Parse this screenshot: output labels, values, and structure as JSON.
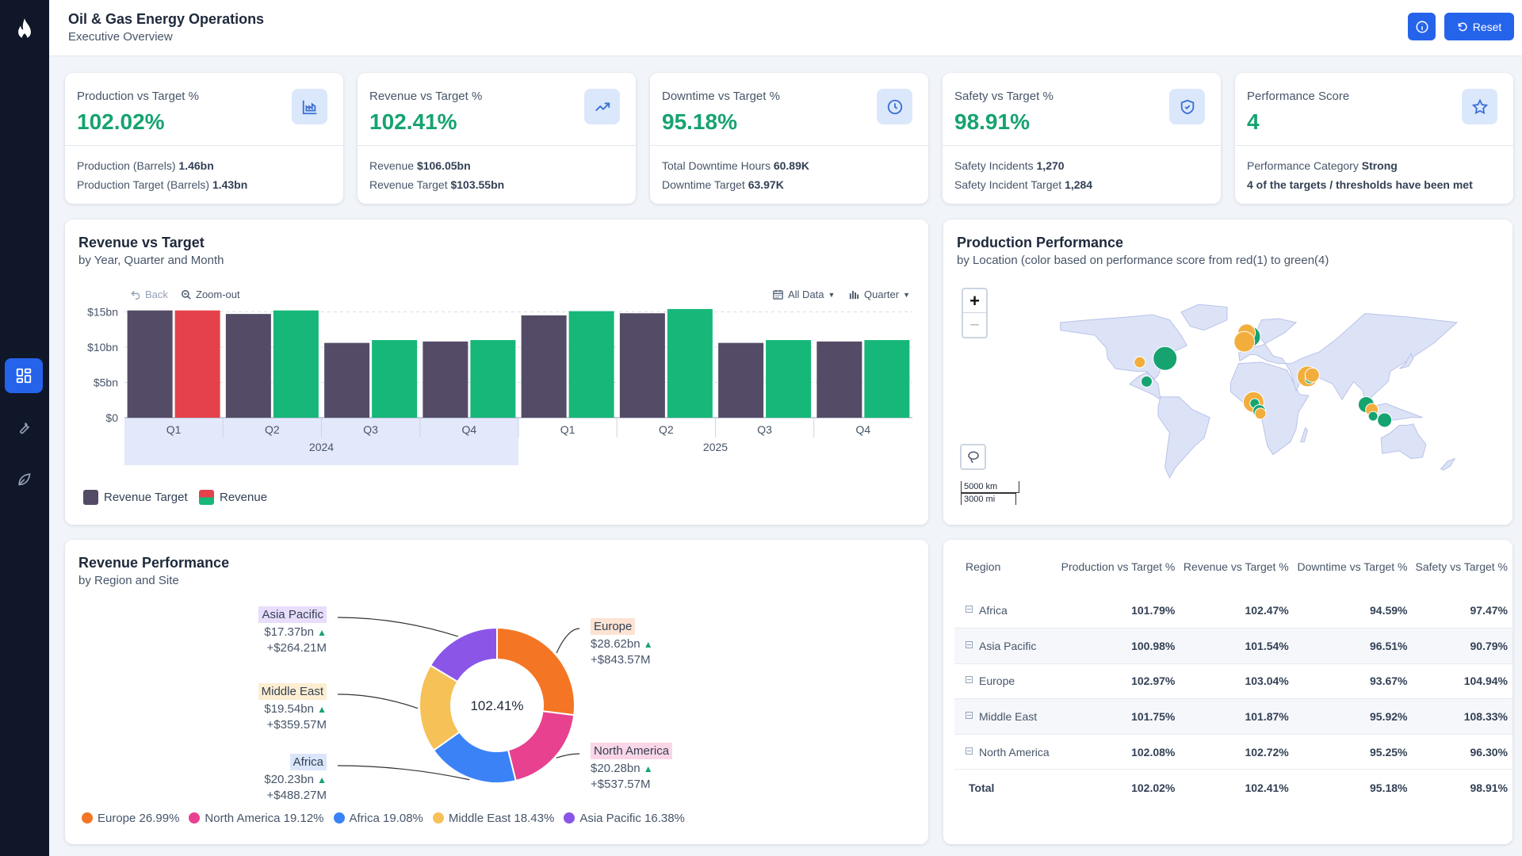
{
  "header": {
    "title": "Oil & Gas Energy Operations",
    "subtitle": "Executive Overview",
    "reset_label": "Reset"
  },
  "kpis": [
    {
      "label": "Production vs Target %",
      "value": "102.02%",
      "icon": "factory-chart-icon",
      "lines": [
        {
          "label": "Production (Barrels)",
          "value": "1.46bn"
        },
        {
          "label": "Production Target (Barrels)",
          "value": "1.43bn"
        }
      ]
    },
    {
      "label": "Revenue vs Target %",
      "value": "102.41%",
      "icon": "trending-up-icon",
      "lines": [
        {
          "label": "Revenue",
          "value": "$106.05bn"
        },
        {
          "label": "Revenue Target",
          "value": "$103.55bn"
        }
      ]
    },
    {
      "label": "Downtime vs Target %",
      "value": "95.18%",
      "icon": "clock-icon",
      "lines": [
        {
          "label": "Total Downtime Hours",
          "value": "60.89K"
        },
        {
          "label": "Downtime Target",
          "value": "63.97K"
        }
      ]
    },
    {
      "label": "Safety vs Target %",
      "value": "98.91%",
      "icon": "shield-check-icon",
      "lines": [
        {
          "label": "Safety Incidents",
          "value": "1,270"
        },
        {
          "label": "Safety Incident Target",
          "value": "1,284"
        }
      ]
    },
    {
      "label": "Performance Score",
      "value": "4",
      "icon": "star-icon",
      "lines": [
        {
          "label": "Performance Category",
          "value": "Strong"
        },
        {
          "label": "",
          "value": "4 of the targets / thresholds have been met"
        }
      ]
    }
  ],
  "revenue_chart": {
    "title": "Revenue vs Target",
    "subtitle": "by Year, Quarter and Month",
    "back_label": "Back",
    "zoom_label": "Zoom-out",
    "all_data_label": "All Data",
    "quarter_label": "Quarter",
    "legend": [
      {
        "name": "Revenue Target",
        "color": "#544b66"
      },
      {
        "name": "Revenue",
        "color": "#16b779"
      }
    ]
  },
  "chart_data": {
    "type": "bar",
    "x": [
      {
        "quarter": "Q1",
        "year": "2024"
      },
      {
        "quarter": "Q2",
        "year": "2024"
      },
      {
        "quarter": "Q3",
        "year": "2024"
      },
      {
        "quarter": "Q4",
        "year": "2024"
      },
      {
        "quarter": "Q1",
        "year": "2025"
      },
      {
        "quarter": "Q2",
        "year": "2025"
      },
      {
        "quarter": "Q3",
        "year": "2025"
      },
      {
        "quarter": "Q4",
        "year": "2025"
      }
    ],
    "years": [
      "2024",
      "2025"
    ],
    "series": [
      {
        "name": "Revenue Target",
        "color": "#544b66",
        "values": [
          15.2,
          14.7,
          10.6,
          10.8,
          14.5,
          14.8,
          10.6,
          10.8
        ]
      },
      {
        "name": "Revenue",
        "color": "#16b779",
        "values": [
          15.2,
          15.2,
          11.0,
          11.0,
          15.1,
          15.4,
          11.0,
          11.0
        ]
      }
    ],
    "below_target_color": "#e5414b",
    "yticks": [
      "$0",
      "$5bn",
      "$10bn",
      "$15bn"
    ],
    "ylim": [
      0,
      15.5
    ],
    "highlighted_year": "2024"
  },
  "map_panel": {
    "title": "Production Performance",
    "subtitle": "by Location (color based on performance score from red(1) to green(4)",
    "scale_km": "5000 km",
    "scale_mi": "3000 mi",
    "points": [
      {
        "lon": -96,
        "lat": 37,
        "score": "low",
        "size": 7
      },
      {
        "lon": -74,
        "lat": 40,
        "score": "high",
        "size": 15
      },
      {
        "lon": -90,
        "lat": 22,
        "score": "high",
        "size": 7
      },
      {
        "lon": 0,
        "lat": 57,
        "score": "high",
        "size": 13
      },
      {
        "lon": -3,
        "lat": 60,
        "score": "low",
        "size": 11
      },
      {
        "lon": -5,
        "lat": 53,
        "score": "low",
        "size": 13
      },
      {
        "lon": 50,
        "lat": 26,
        "score": "low",
        "size": 13
      },
      {
        "lon": 52,
        "lat": 24,
        "score": "high",
        "size": 6
      },
      {
        "lon": 54,
        "lat": 27,
        "score": "low",
        "size": 9
      },
      {
        "lon": 3,
        "lat": 6,
        "score": "low",
        "size": 13
      },
      {
        "lon": 4,
        "lat": 5,
        "score": "high",
        "size": 6
      },
      {
        "lon": 8,
        "lat": -1,
        "score": "high",
        "size": 8
      },
      {
        "lon": 9,
        "lat": -3,
        "score": "low",
        "size": 7
      },
      {
        "lon": 101,
        "lat": 4,
        "score": "high",
        "size": 10
      },
      {
        "lon": 106,
        "lat": 0,
        "score": "low",
        "size": 8
      },
      {
        "lon": 107,
        "lat": -5,
        "score": "high",
        "size": 6
      },
      {
        "lon": 117,
        "lat": -8,
        "score": "high",
        "size": 9
      }
    ]
  },
  "donut_panel": {
    "title": "Revenue Performance",
    "subtitle": "by Region and Site",
    "center_label": "102.41%",
    "segments": [
      {
        "name": "Europe",
        "pct": 26.99,
        "value": "$28.62bn",
        "delta": "+$843.57M",
        "color": "#f47624",
        "bg": "#fde3d3"
      },
      {
        "name": "North America",
        "pct": 19.12,
        "value": "$20.28bn",
        "delta": "+$537.57M",
        "color": "#e8418f",
        "bg": "#fad6e6"
      },
      {
        "name": "Africa",
        "pct": 19.08,
        "value": "$20.23bn",
        "delta": "+$488.27M",
        "color": "#3b82f6",
        "bg": "#dbe6fb"
      },
      {
        "name": "Middle East",
        "pct": 18.43,
        "value": "$19.54bn",
        "delta": "+$359.57M",
        "color": "#f6c156",
        "bg": "#fdeed2"
      },
      {
        "name": "Asia Pacific",
        "pct": 16.38,
        "value": "$17.37bn",
        "delta": "+$264.21M",
        "color": "#8b55e8",
        "bg": "#e8ddfb"
      }
    ],
    "legend": [
      "Europe 26.99%",
      "North America 19.12%",
      "Africa 19.08%",
      "Middle East 18.43%",
      "Asia Pacific 16.38%"
    ]
  },
  "table": {
    "columns": [
      "Region",
      "Production vs Target %",
      "Revenue vs Target %",
      "Downtime vs Target %",
      "Safety vs Target %"
    ],
    "rows": [
      [
        "Africa",
        "101.79%",
        "102.47%",
        "94.59%",
        "97.47%"
      ],
      [
        "Asia Pacific",
        "100.98%",
        "101.54%",
        "96.51%",
        "90.79%"
      ],
      [
        "Europe",
        "102.97%",
        "103.04%",
        "93.67%",
        "104.94%"
      ],
      [
        "Middle East",
        "101.75%",
        "101.87%",
        "95.92%",
        "108.33%"
      ],
      [
        "North America",
        "102.08%",
        "102.72%",
        "95.25%",
        "96.30%"
      ]
    ],
    "total": [
      "Total",
      "102.02%",
      "102.41%",
      "95.18%",
      "98.91%"
    ]
  }
}
